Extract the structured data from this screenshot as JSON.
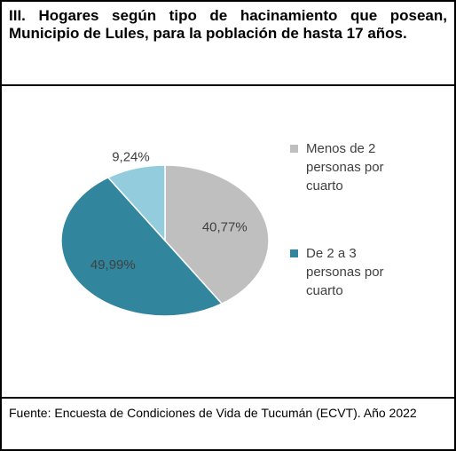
{
  "chart_data": {
    "type": "pie",
    "title": "III. Hogares según tipo de hacinamiento que posean, Municipio de Lules, para la población de hasta 17 años.",
    "categories": [
      "Menos de 2 personas por cuarto",
      "De 2 a 3 personas por cuarto",
      null
    ],
    "values": [
      40.77,
      49.99,
      9.24
    ],
    "value_labels": [
      "40,77%",
      "49,99%",
      "9,24%"
    ],
    "colors": [
      "#bfbfbf",
      "#31859c",
      "#93cddd"
    ],
    "source": "Fuente: Encuesta de Condiciones de Vida de Tucumán (ECVT). Año 2022"
  }
}
